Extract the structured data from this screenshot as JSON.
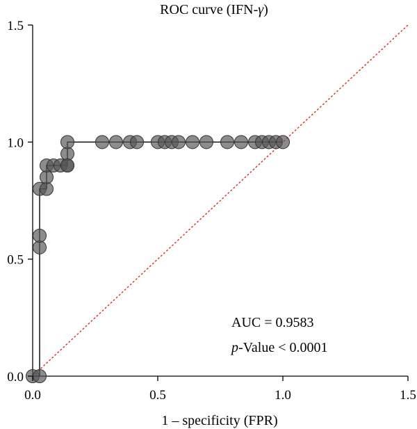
{
  "chart_data": {
    "type": "scatter",
    "title_main": "ROC curve (IFN-",
    "title_symbol": "γ",
    "title_end": ")",
    "xlabel": "1 – specificity (FPR)",
    "ylabel": "",
    "xlim": [
      0,
      1.5
    ],
    "ylim": [
      0,
      1.5
    ],
    "xticks": [
      0.0,
      0.5,
      1.0,
      1.5
    ],
    "xtick_labels": [
      "0.0",
      "0.5",
      "1.0",
      "1.5"
    ],
    "yticks": [
      0.0,
      0.5,
      1.0,
      1.5
    ],
    "ytick_labels": [
      "0.0",
      "0.5",
      "1.0",
      "1.5"
    ],
    "grid": false,
    "colors": {
      "point_fill": "#555555",
      "point_stroke": "#333333",
      "curve": "#000000",
      "reference": "#e03020"
    },
    "roc_curve": {
      "x": [
        0,
        0,
        0.0278,
        0.0278,
        0.0556,
        0.0556,
        0.0833,
        0.0833,
        0.1389,
        0.1389,
        1.0
      ],
      "y": [
        0,
        0,
        0,
        0.8,
        0.8,
        0.9,
        0.9,
        0.9,
        0.9,
        1.0,
        1.0
      ]
    },
    "reference_line": {
      "x": [
        0,
        1.5
      ],
      "y": [
        0,
        1.5
      ]
    },
    "points": {
      "x": [
        0,
        0.0278,
        0.0278,
        0.0278,
        0.0278,
        0.0556,
        0.0556,
        0.0556,
        0.0833,
        0.1111,
        0.1389,
        0.1389,
        0.1389,
        0.1389,
        0.2778,
        0.3333,
        0.3889,
        0.4167,
        0.5,
        0.5278,
        0.5556,
        0.5833,
        0.6389,
        0.6944,
        0.7778,
        0.8333,
        0.8889,
        0.9167,
        0.9444,
        0.9722,
        1.0
      ],
      "y": [
        0,
        0,
        0.55,
        0.6,
        0.8,
        0.8,
        0.85,
        0.9,
        0.9,
        0.9,
        0.9,
        0.95,
        1.0,
        0.9,
        1.0,
        1.0,
        1.0,
        1.0,
        1.0,
        1.0,
        1.0,
        1.0,
        1.0,
        1.0,
        1.0,
        1.0,
        1.0,
        1.0,
        1.0,
        1.0,
        1.0
      ]
    },
    "annotations": {
      "auc": "AUC = 0.9583",
      "pvalue_italic": "p",
      "pvalue_rest": "-Value < 0.0001"
    }
  }
}
